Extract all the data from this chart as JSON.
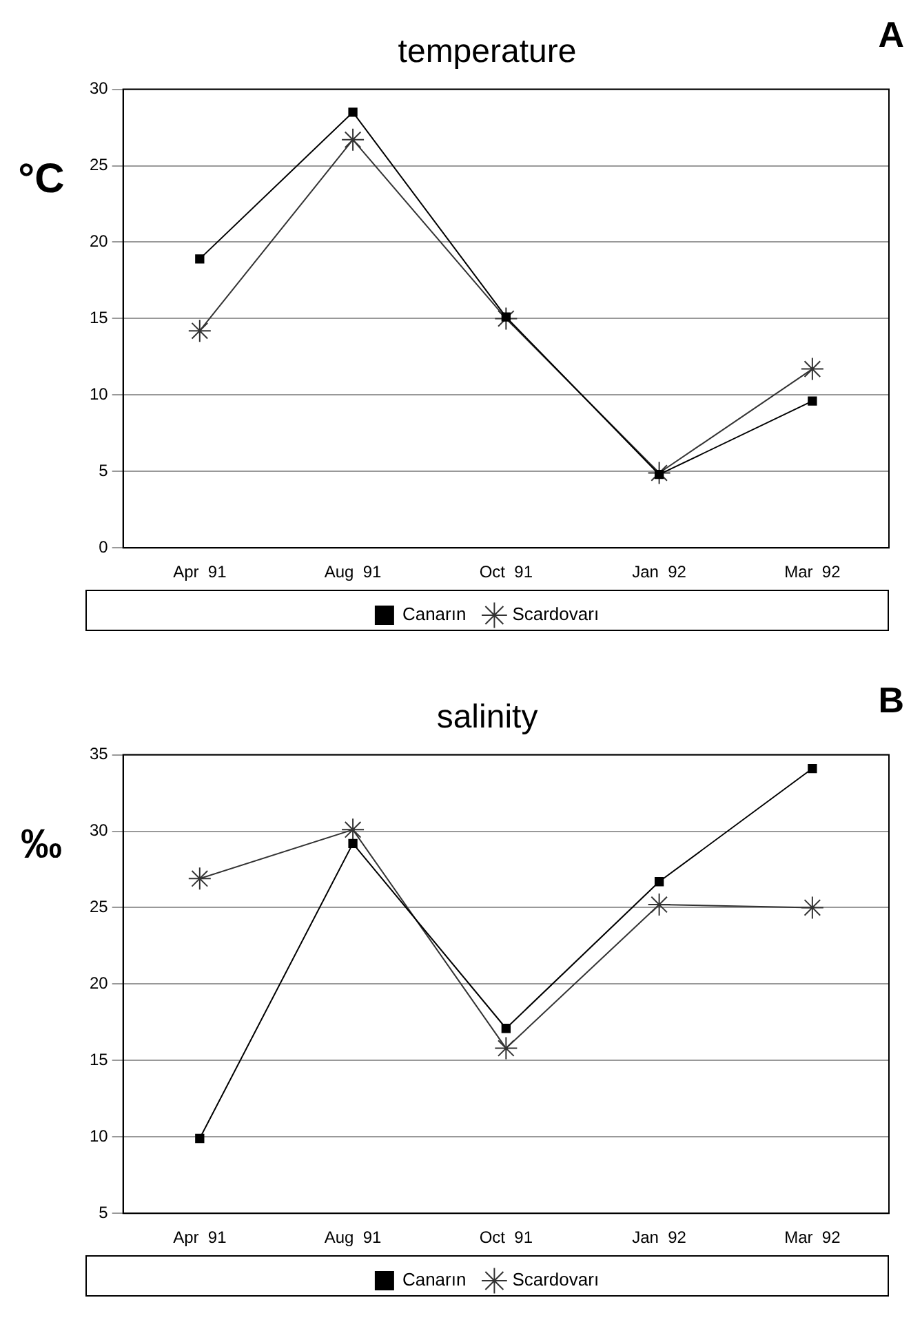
{
  "chart_data": [
    {
      "type": "line",
      "title": "temperature",
      "ylabel": "°C",
      "annotations": [
        "A"
      ],
      "categories": [
        "Apr  91",
        "Aug  91",
        "Oct  91",
        "Jan  92",
        "Mar  92"
      ],
      "series": [
        {
          "name": "Canarın",
          "color": "#000000",
          "marker": "square",
          "values": [
            18.9,
            28.5,
            15.1,
            4.8,
            9.6
          ]
        },
        {
          "name": "Scardovarı",
          "color": "#333333",
          "marker": "cross",
          "values": [
            14.2,
            26.7,
            15.0,
            4.9,
            11.7
          ]
        }
      ],
      "ylim": [
        0,
        30
      ],
      "yticks": [
        0,
        5,
        10,
        15,
        20,
        25,
        30
      ],
      "grid": "y",
      "legend": "bottom",
      "line_style": "solid"
    },
    {
      "type": "line",
      "title": "salinity",
      "ylabel": "‰",
      "annotations": [
        "B"
      ],
      "categories": [
        "Apr  91",
        "Aug  91",
        "Oct  91",
        "Jan  92",
        "Mar  92"
      ],
      "series": [
        {
          "name": "Canarın",
          "color": "#000000",
          "marker": "square",
          "values": [
            9.9,
            29.2,
            17.1,
            26.7,
            34.1
          ]
        },
        {
          "name": "Scardovarı",
          "color": "#333333",
          "marker": "cross",
          "values": [
            26.9,
            30.1,
            15.8,
            25.2,
            25.0
          ]
        }
      ],
      "ylim": [
        5,
        35
      ],
      "yticks": [
        5,
        10,
        15,
        20,
        25,
        30,
        35
      ],
      "grid": "y",
      "legend": "bottom",
      "line_style": "solid"
    }
  ]
}
